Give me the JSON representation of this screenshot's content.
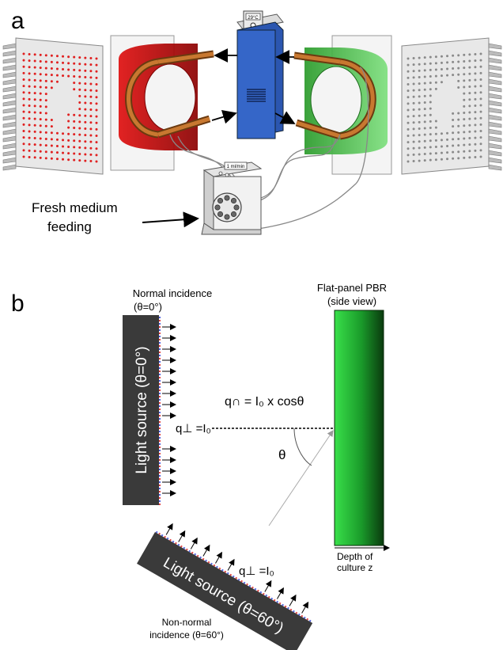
{
  "panel_a": {
    "letter": "a",
    "heater_display": "29°C",
    "pump_display": "1 ml/min",
    "feed_label_line1": "Fresh medium",
    "feed_label_line2": "feeding"
  },
  "panel_b": {
    "letter": "b",
    "normal_title_line1": "Normal incidence",
    "normal_title_line2": "(θ=0°)",
    "pbr_title_line1": "Flat-panel PBR",
    "pbr_title_line2": "(side view)",
    "normal_source_label": "Light source (θ=0°)",
    "oblique_source_label": "Light source (θ=60°)",
    "flux_normal": "q⊥ =I₀",
    "flux_oblique": "q⊥ =I₀",
    "flux_projection": "q∩ = I₀ x cosθ",
    "theta_symbol": "θ",
    "depth_line1": "Depth of",
    "depth_line2": "culture z",
    "nonnormal_line1": "Non-normal",
    "nonnormal_line2": "incidence (θ=60°)"
  },
  "colors": {
    "red_reactor": "#c40000",
    "green_reactor": "#2fbf2f",
    "controller_blue": "#2e5fbf",
    "copper_coil": "#b5651d",
    "led_red": "#e02020",
    "source_dark": "#3a3a3a",
    "pbr_green_light": "#33dd44",
    "pbr_green_dark": "#0a4a12"
  }
}
